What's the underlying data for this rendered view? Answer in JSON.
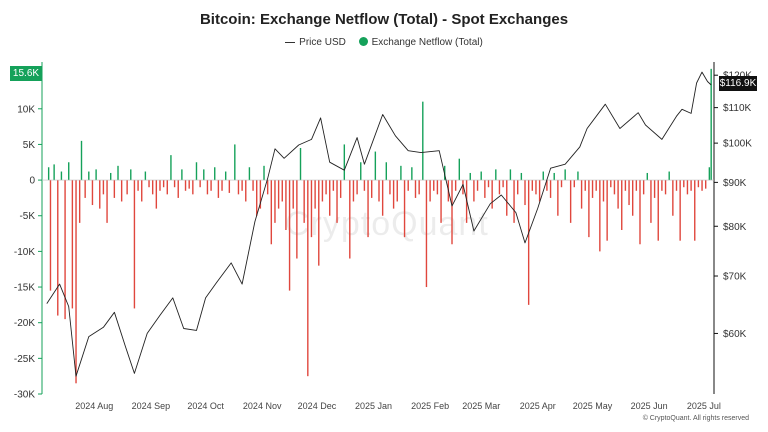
{
  "chart_data": {
    "type": "bar",
    "title": "Bitcoin: Exchange Netflow (Total) - Spot Exchanges",
    "legend": [
      "Price USD",
      "Exchange Netflow (Total)"
    ],
    "x_ticks": [
      "2024 Aug",
      "2024 Sep",
      "2024 Oct",
      "2024 Nov",
      "2024 Dec",
      "2025 Jan",
      "2025 Feb",
      "2025 Mar",
      "2025 Apr",
      "2025 May",
      "2025 Jun",
      "2025 Jul"
    ],
    "left_axis": {
      "ticks": [
        "10K",
        "5K",
        "0",
        "-5K",
        "-10K",
        "-15K",
        "-20K",
        "-25K",
        "-30K"
      ],
      "ylim": [
        -30000,
        16000
      ]
    },
    "right_axis": {
      "ticks": [
        "$120K",
        "$110K",
        "$100K",
        "$90K",
        "$80K",
        "$70K",
        "$60K"
      ],
      "ylim": [
        51000,
        123000
      ],
      "scale": "log"
    },
    "current_netflow_label": "15.6K",
    "current_price_label": "$116.9K",
    "series": [
      {
        "name": "Price USD",
        "type": "line",
        "color": "#222222",
        "points": [
          [
            "2024-07-20",
            65000
          ],
          [
            "2024-07-27",
            68500
          ],
          [
            "2024-08-01",
            64500
          ],
          [
            "2024-08-05",
            53500
          ],
          [
            "2024-08-12",
            59500
          ],
          [
            "2024-08-20",
            61000
          ],
          [
            "2024-08-26",
            63500
          ],
          [
            "2024-09-01",
            58000
          ],
          [
            "2024-09-06",
            53900
          ],
          [
            "2024-09-13",
            60000
          ],
          [
            "2024-09-20",
            63000
          ],
          [
            "2024-09-27",
            66000
          ],
          [
            "2024-10-03",
            60800
          ],
          [
            "2024-10-10",
            60500
          ],
          [
            "2024-10-15",
            66000
          ],
          [
            "2024-10-21",
            68800
          ],
          [
            "2024-10-29",
            72500
          ],
          [
            "2024-11-04",
            68500
          ],
          [
            "2024-11-11",
            81000
          ],
          [
            "2024-11-18",
            91000
          ],
          [
            "2024-11-22",
            98500
          ],
          [
            "2024-11-27",
            96000
          ],
          [
            "2024-12-05",
            99500
          ],
          [
            "2024-12-12",
            101000
          ],
          [
            "2024-12-17",
            107000
          ],
          [
            "2024-12-22",
            95000
          ],
          [
            "2024-12-30",
            93000
          ],
          [
            "2025-01-06",
            101500
          ],
          [
            "2025-01-10",
            94500
          ],
          [
            "2025-01-20",
            108000
          ],
          [
            "2025-01-27",
            102000
          ],
          [
            "2025-02-03",
            98000
          ],
          [
            "2025-02-10",
            97500
          ],
          [
            "2025-02-20",
            98000
          ],
          [
            "2025-02-27",
            84500
          ],
          [
            "2025-03-05",
            89500
          ],
          [
            "2025-03-11",
            79000
          ],
          [
            "2025-03-20",
            85000
          ],
          [
            "2025-03-26",
            87000
          ],
          [
            "2025-04-03",
            83000
          ],
          [
            "2025-04-08",
            76500
          ],
          [
            "2025-04-15",
            84000
          ],
          [
            "2025-04-22",
            93500
          ],
          [
            "2025-04-30",
            94500
          ],
          [
            "2025-05-08",
            99000
          ],
          [
            "2025-05-12",
            104000
          ],
          [
            "2025-05-22",
            111000
          ],
          [
            "2025-05-30",
            104000
          ],
          [
            "2025-06-09",
            108500
          ],
          [
            "2025-06-13",
            105000
          ],
          [
            "2025-06-22",
            101000
          ],
          [
            "2025-06-30",
            107500
          ],
          [
            "2025-07-03",
            109500
          ],
          [
            "2025-07-08",
            108300
          ],
          [
            "2025-07-11",
            117500
          ],
          [
            "2025-07-14",
            121000
          ],
          [
            "2025-07-17",
            118000
          ],
          [
            "2025-07-19",
            116900
          ]
        ]
      },
      {
        "name": "Exchange Netflow (Total)",
        "type": "bar",
        "positive_color": "#15a15a",
        "negative_color": "#e0473d",
        "points": [
          [
            "2024-07-21",
            1800
          ],
          [
            "2024-07-22",
            -15500
          ],
          [
            "2024-07-24",
            2200
          ],
          [
            "2024-07-26",
            -19000
          ],
          [
            "2024-07-28",
            1200
          ],
          [
            "2024-07-30",
            -19500
          ],
          [
            "2024-08-01",
            2500
          ],
          [
            "2024-08-03",
            -18000
          ],
          [
            "2024-08-05",
            -28500
          ],
          [
            "2024-08-07",
            -6000
          ],
          [
            "2024-08-08",
            5500
          ],
          [
            "2024-08-10",
            -2500
          ],
          [
            "2024-08-12",
            1200
          ],
          [
            "2024-08-14",
            -3500
          ],
          [
            "2024-08-16",
            1500
          ],
          [
            "2024-08-18",
            -4000
          ],
          [
            "2024-08-20",
            -2000
          ],
          [
            "2024-08-22",
            -6000
          ],
          [
            "2024-08-24",
            1000
          ],
          [
            "2024-08-26",
            -2500
          ],
          [
            "2024-08-28",
            2000
          ],
          [
            "2024-08-30",
            -3000
          ],
          [
            "2024-09-02",
            -2000
          ],
          [
            "2024-09-04",
            1500
          ],
          [
            "2024-09-06",
            -18000
          ],
          [
            "2024-09-08",
            -1500
          ],
          [
            "2024-09-10",
            -3000
          ],
          [
            "2024-09-12",
            1200
          ],
          [
            "2024-09-14",
            -1000
          ],
          [
            "2024-09-16",
            -2000
          ],
          [
            "2024-09-18",
            -4000
          ],
          [
            "2024-09-20",
            -1500
          ],
          [
            "2024-09-22",
            -1000
          ],
          [
            "2024-09-24",
            -2000
          ],
          [
            "2024-09-26",
            3500
          ],
          [
            "2024-09-28",
            -1000
          ],
          [
            "2024-09-30",
            -2500
          ],
          [
            "2024-10-02",
            1500
          ],
          [
            "2024-10-04",
            -1500
          ],
          [
            "2024-10-06",
            -1200
          ],
          [
            "2024-10-08",
            -2000
          ],
          [
            "2024-10-10",
            2500
          ],
          [
            "2024-10-12",
            -1000
          ],
          [
            "2024-10-14",
            1500
          ],
          [
            "2024-10-16",
            -2000
          ],
          [
            "2024-10-18",
            -1500
          ],
          [
            "2024-10-20",
            1800
          ],
          [
            "2024-10-22",
            -2500
          ],
          [
            "2024-10-24",
            -1500
          ],
          [
            "2024-10-26",
            1200
          ],
          [
            "2024-10-28",
            -1800
          ],
          [
            "2024-10-31",
            5000
          ],
          [
            "2024-11-02",
            -2000
          ],
          [
            "2024-11-04",
            -1500
          ],
          [
            "2024-11-06",
            -3000
          ],
          [
            "2024-11-08",
            1800
          ],
          [
            "2024-11-10",
            -1500
          ],
          [
            "2024-11-12",
            -5000
          ],
          [
            "2024-11-14",
            -4000
          ],
          [
            "2024-11-16",
            2000
          ],
          [
            "2024-11-18",
            -2000
          ],
          [
            "2024-11-20",
            -9000
          ],
          [
            "2024-11-22",
            -6000
          ],
          [
            "2024-11-24",
            -4000
          ],
          [
            "2024-11-26",
            -3000
          ],
          [
            "2024-11-28",
            -7000
          ],
          [
            "2024-11-30",
            -15500
          ],
          [
            "2024-12-02",
            -4000
          ],
          [
            "2024-12-04",
            -11000
          ],
          [
            "2024-12-06",
            4500
          ],
          [
            "2024-12-08",
            -6000
          ],
          [
            "2024-12-10",
            -27500
          ],
          [
            "2024-12-12",
            -8000
          ],
          [
            "2024-12-14",
            -4000
          ],
          [
            "2024-12-16",
            -12000
          ],
          [
            "2024-12-18",
            -3000
          ],
          [
            "2024-12-20",
            -2000
          ],
          [
            "2024-12-22",
            -5000
          ],
          [
            "2024-12-24",
            -1500
          ],
          [
            "2024-12-26",
            -6000
          ],
          [
            "2024-12-28",
            -2500
          ],
          [
            "2024-12-30",
            5000
          ],
          [
            "2025-01-02",
            -11000
          ],
          [
            "2025-01-04",
            -3000
          ],
          [
            "2025-01-06",
            -2000
          ],
          [
            "2025-01-08",
            2500
          ],
          [
            "2025-01-10",
            -1500
          ],
          [
            "2025-01-12",
            -8000
          ],
          [
            "2025-01-14",
            -2500
          ],
          [
            "2025-01-16",
            4000
          ],
          [
            "2025-01-18",
            -3000
          ],
          [
            "2025-01-20",
            -5000
          ],
          [
            "2025-01-22",
            2500
          ],
          [
            "2025-01-24",
            -2000
          ],
          [
            "2025-01-26",
            -4000
          ],
          [
            "2025-01-28",
            -3000
          ],
          [
            "2025-01-30",
            2000
          ],
          [
            "2025-02-01",
            -8000
          ],
          [
            "2025-02-03",
            -1500
          ],
          [
            "2025-02-05",
            1800
          ],
          [
            "2025-02-07",
            -2500
          ],
          [
            "2025-02-09",
            -2000
          ],
          [
            "2025-02-11",
            11000
          ],
          [
            "2025-02-13",
            -15000
          ],
          [
            "2025-02-15",
            -3000
          ],
          [
            "2025-02-17",
            -1500
          ],
          [
            "2025-02-19",
            -2000
          ],
          [
            "2025-02-21",
            -6000
          ],
          [
            "2025-02-23",
            2000
          ],
          [
            "2025-02-25",
            -3000
          ],
          [
            "2025-02-27",
            -9000
          ],
          [
            "2025-03-01",
            -1500
          ],
          [
            "2025-03-03",
            3000
          ],
          [
            "2025-03-05",
            -2000
          ],
          [
            "2025-03-07",
            -6000
          ],
          [
            "2025-03-09",
            1000
          ],
          [
            "2025-03-11",
            -3000
          ],
          [
            "2025-03-13",
            -1500
          ],
          [
            "2025-03-15",
            1200
          ],
          [
            "2025-03-17",
            -2500
          ],
          [
            "2025-03-19",
            -1000
          ],
          [
            "2025-03-21",
            -4000
          ],
          [
            "2025-03-23",
            1500
          ],
          [
            "2025-03-25",
            -2000
          ],
          [
            "2025-03-27",
            -1000
          ],
          [
            "2025-03-29",
            -5000
          ],
          [
            "2025-03-31",
            1500
          ],
          [
            "2025-04-02",
            -6000
          ],
          [
            "2025-04-04",
            -2000
          ],
          [
            "2025-04-06",
            1000
          ],
          [
            "2025-04-08",
            -3500
          ],
          [
            "2025-04-10",
            -17500
          ],
          [
            "2025-04-12",
            -1500
          ],
          [
            "2025-04-14",
            -2000
          ],
          [
            "2025-04-16",
            -3000
          ],
          [
            "2025-04-18",
            1200
          ],
          [
            "2025-04-20",
            -1500
          ],
          [
            "2025-04-22",
            -2500
          ],
          [
            "2025-04-24",
            1000
          ],
          [
            "2025-04-26",
            -5000
          ],
          [
            "2025-04-28",
            -1000
          ],
          [
            "2025-04-30",
            1500
          ],
          [
            "2025-05-03",
            -6000
          ],
          [
            "2025-05-05",
            -1000
          ],
          [
            "2025-05-07",
            1200
          ],
          [
            "2025-05-09",
            -4000
          ],
          [
            "2025-05-11",
            -1500
          ],
          [
            "2025-05-13",
            -8000
          ],
          [
            "2025-05-15",
            -2500
          ],
          [
            "2025-05-17",
            -1500
          ],
          [
            "2025-05-19",
            -10000
          ],
          [
            "2025-05-21",
            -3000
          ],
          [
            "2025-05-23",
            -8500
          ],
          [
            "2025-05-25",
            -1000
          ],
          [
            "2025-05-27",
            -2000
          ],
          [
            "2025-05-29",
            -4000
          ],
          [
            "2025-05-31",
            -7000
          ],
          [
            "2025-06-02",
            -1500
          ],
          [
            "2025-06-04",
            -3500
          ],
          [
            "2025-06-06",
            -5000
          ],
          [
            "2025-06-08",
            -1500
          ],
          [
            "2025-06-10",
            -9000
          ],
          [
            "2025-06-12",
            -2000
          ],
          [
            "2025-06-14",
            1000
          ],
          [
            "2025-06-16",
            -6000
          ],
          [
            "2025-06-18",
            -2500
          ],
          [
            "2025-06-20",
            -8500
          ],
          [
            "2025-06-22",
            -1500
          ],
          [
            "2025-06-24",
            -2000
          ],
          [
            "2025-06-26",
            1200
          ],
          [
            "2025-06-28",
            -5000
          ],
          [
            "2025-06-30",
            -1500
          ],
          [
            "2025-07-02",
            -8500
          ],
          [
            "2025-07-04",
            -1000
          ],
          [
            "2025-07-06",
            -2000
          ],
          [
            "2025-07-08",
            -1500
          ],
          [
            "2025-07-10",
            -8500
          ],
          [
            "2025-07-12",
            -1000
          ],
          [
            "2025-07-14",
            -1500
          ],
          [
            "2025-07-16",
            -1200
          ],
          [
            "2025-07-18",
            1800
          ],
          [
            "2025-07-19",
            15600
          ]
        ]
      }
    ],
    "grid": false,
    "legend_position": "top-center"
  },
  "watermark": "CryptoQuant",
  "copyright": "© CryptoQuant. All rights reserved"
}
